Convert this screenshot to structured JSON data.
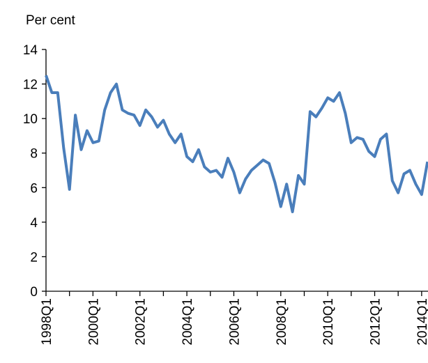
{
  "chart_data": {
    "type": "line",
    "y_label": "Per cent",
    "categories": [
      "1998Q1",
      null,
      null,
      null,
      null,
      null,
      null,
      null,
      "2000Q1",
      null,
      null,
      null,
      null,
      null,
      null,
      null,
      "2002Q1",
      null,
      null,
      null,
      null,
      null,
      null,
      null,
      "2004Q1",
      null,
      null,
      null,
      null,
      null,
      null,
      null,
      "2006Q1",
      null,
      null,
      null,
      null,
      null,
      null,
      null,
      "2008Q1",
      null,
      null,
      null,
      null,
      null,
      null,
      null,
      "2010Q1",
      null,
      null,
      null,
      null,
      null,
      null,
      null,
      "2012Q1",
      null,
      null,
      null,
      null,
      null,
      null,
      null,
      "2014Q1",
      null
    ],
    "values": [
      12.5,
      11.5,
      11.5,
      8.3,
      5.9,
      10.2,
      8.2,
      9.3,
      8.6,
      8.7,
      10.5,
      11.5,
      12.0,
      10.5,
      10.3,
      10.2,
      9.6,
      10.5,
      10.1,
      9.5,
      9.9,
      9.1,
      8.6,
      9.1,
      7.8,
      7.5,
      8.2,
      7.2,
      6.9,
      7.0,
      6.6,
      7.7,
      6.9,
      5.7,
      6.5,
      7.0,
      7.3,
      7.6,
      7.4,
      6.3,
      4.9,
      6.2,
      4.6,
      6.7,
      6.2,
      10.4,
      10.1,
      10.6,
      11.2,
      11.0,
      11.5,
      10.3,
      8.6,
      8.9,
      8.8,
      8.1,
      7.8,
      8.8,
      9.1,
      6.4,
      5.7,
      6.8,
      7.0,
      6.2,
      5.6,
      7.5
    ],
    "color": "#4a7ebb",
    "ylim": [
      0,
      14
    ],
    "yticks": [
      0,
      2,
      4,
      6,
      8,
      10,
      12,
      14
    ]
  }
}
